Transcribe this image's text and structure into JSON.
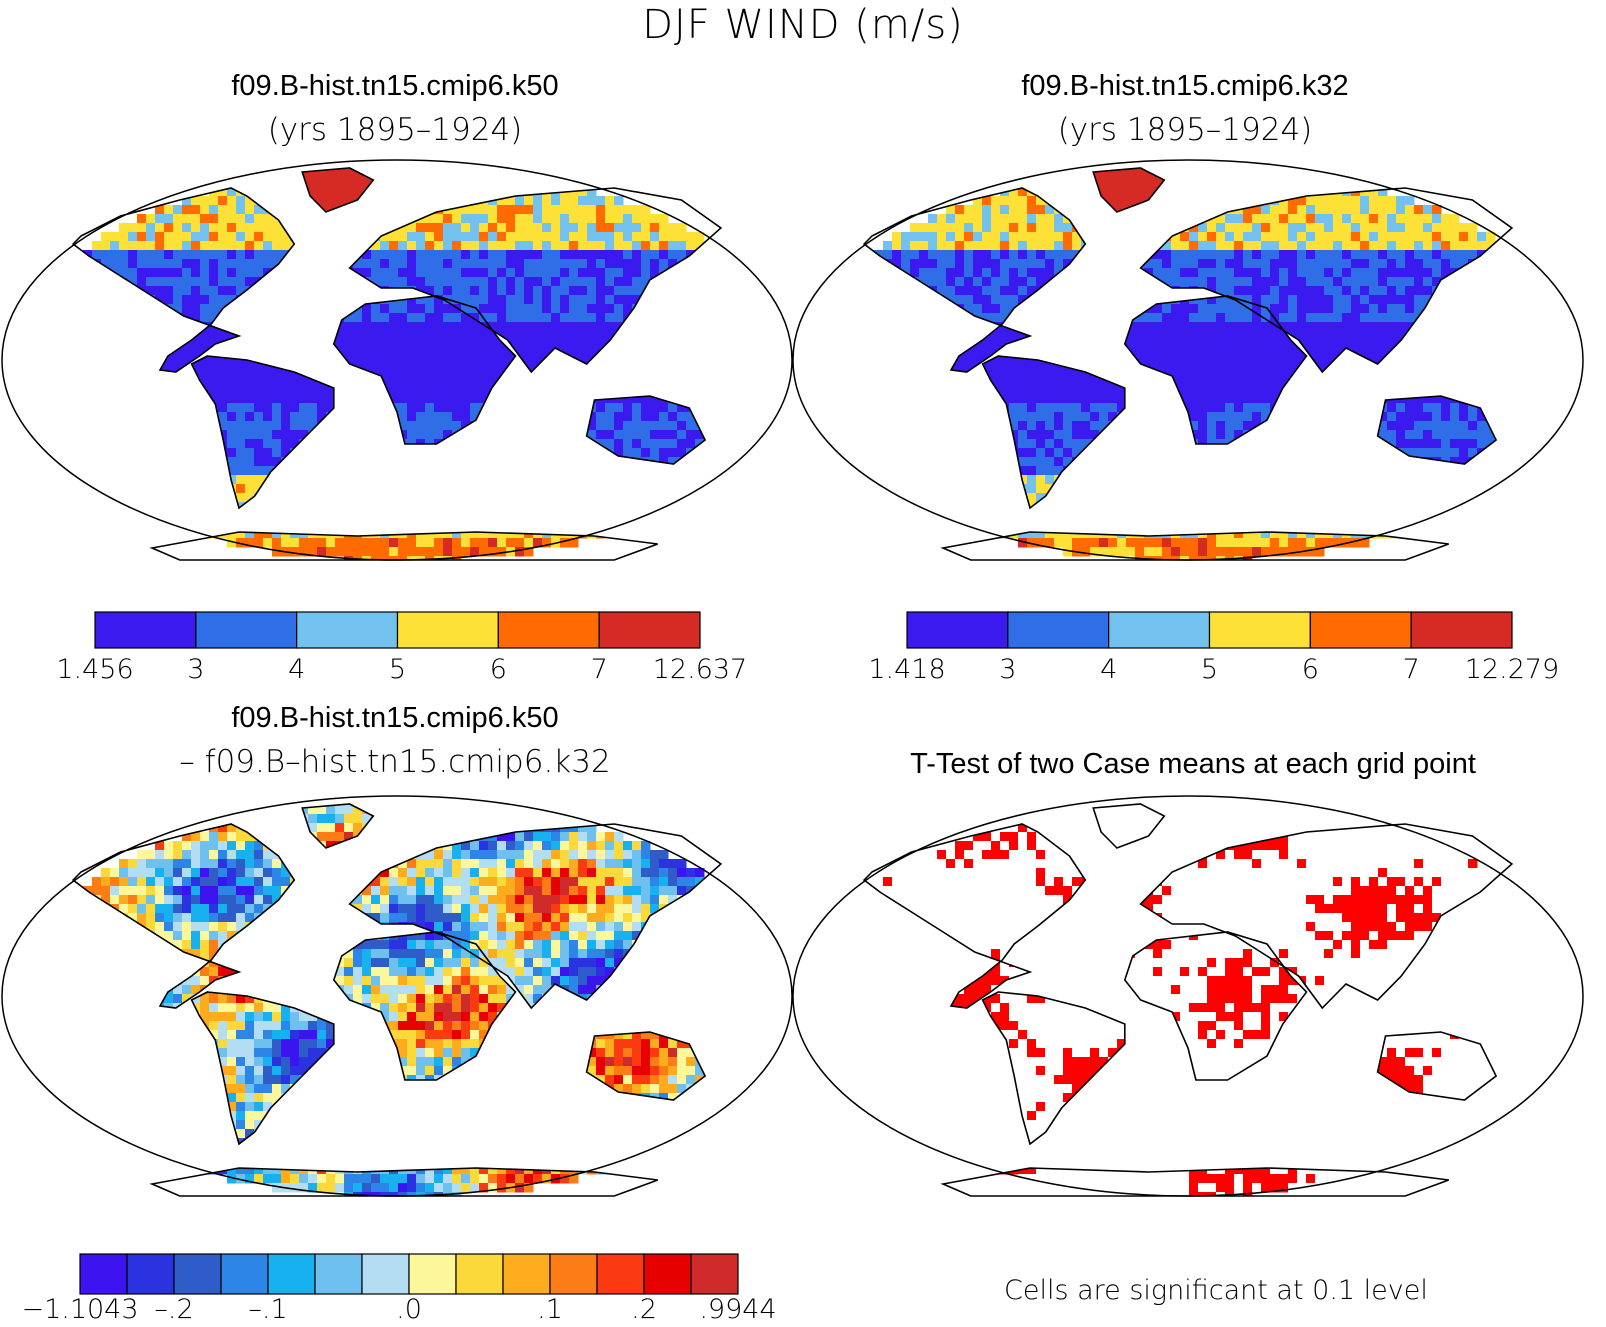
{
  "figure_title": "DJF WIND (m/s)",
  "panels": [
    {
      "title": "f09.B-hist.tn15.cmip6.k50",
      "subtitle": "(yrs 1895–1924)",
      "colorbar": {
        "labels": [
          "1.456",
          "3",
          "4",
          "5",
          "6",
          "7",
          "12.637"
        ],
        "colors": [
          "#3b1af0",
          "#2f6ee6",
          "#73c1ee",
          "#fde136",
          "#ff6b00",
          "#d62a25"
        ]
      }
    },
    {
      "title": "f09.B-hist.tn15.cmip6.k32",
      "subtitle": "(yrs 1895–1924)",
      "colorbar": {
        "labels": [
          "1.418",
          "3",
          "4",
          "5",
          "6",
          "7",
          "12.279"
        ],
        "colors": [
          "#3b1af0",
          "#2f6ee6",
          "#73c1ee",
          "#fde136",
          "#ff6b00",
          "#d62a25"
        ]
      }
    },
    {
      "title": "f09.B-hist.tn15.cmip6.k50",
      "subtitle": "– f09.B–hist.tn15.cmip6.k32",
      "colorbar": {
        "labels": [
          "−1.1043",
          "–.2",
          "–.1",
          ".0",
          ".1",
          ".2",
          ".9944"
        ],
        "colors": [
          "#3d14f0",
          "#2b33e0",
          "#2e5dc9",
          "#2d85e8",
          "#18b1f0",
          "#6ec0ee",
          "#b3ddf2",
          "#fbf79a",
          "#fcd93a",
          "#fcac1c",
          "#fc7d15",
          "#fc3a12",
          "#e60000",
          "#d02b2b"
        ]
      }
    },
    {
      "title": "T-Test of two Case means at each grid point",
      "note": "Cells are significant at 0.1 level",
      "significance_color": "#ff0000"
    }
  ]
}
